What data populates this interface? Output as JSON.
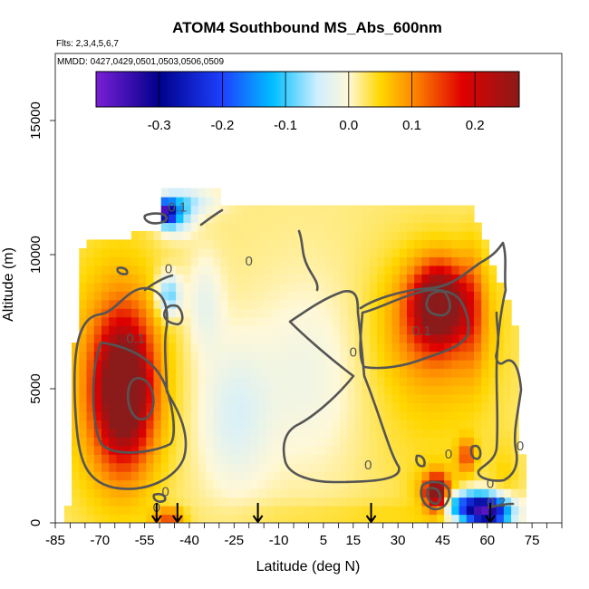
{
  "colors": {
    "background": "#ffffff",
    "frame": "#333333",
    "contour": "#555555",
    "arrow": "#000000",
    "colorbar_stops": [
      "#7a1fd6",
      "#00008b",
      "#1e40ff",
      "#00bfff",
      "#cfeeff",
      "#fff8d8",
      "#ffd700",
      "#ff8c00",
      "#e00000",
      "#8b1a1a"
    ]
  },
  "chart_data": {
    "type": "heatmap",
    "title": "ATOM4 Southbound MS_Abs_600nm",
    "subtitle_flights": "Flts: 2,3,4,5,6,7",
    "subtitle_dates": "MMDD: 0427,0429,0501,0503,0506,0509",
    "xlabel": "Latitude (deg N)",
    "ylabel": "Altitude (m)",
    "xlim": [
      -85,
      85
    ],
    "ylim": [
      0,
      17500
    ],
    "x_ticks": [
      -85,
      -70,
      -55,
      -40,
      -25,
      -10,
      5,
      15,
      30,
      45,
      60,
      75
    ],
    "x_tick_labels": [
      "-85",
      "-70",
      "-55",
      "-40",
      "-25",
      "-10",
      "5",
      "15",
      "30",
      "45",
      "60",
      "75"
    ],
    "y_ticks": [
      0,
      5000,
      10000,
      15000
    ],
    "y_tick_labels": [
      "0",
      "5000",
      "10000",
      "15000"
    ],
    "colorbar": {
      "range": [
        -0.4,
        0.27
      ],
      "ticks": [
        -0.3,
        -0.2,
        -0.1,
        0.0,
        0.1,
        0.2
      ],
      "tick_labels": [
        "-0.3",
        "-0.2",
        "-0.1",
        "0.0",
        "0.1",
        "0.2"
      ]
    },
    "contour_labels": [
      {
        "text": "0.1",
        "lat": -58,
        "alt": 6700
      },
      {
        "text": "0.1",
        "lat": -44,
        "alt": 11600
      },
      {
        "text": "0",
        "lat": -47,
        "alt": 9300
      },
      {
        "text": "0",
        "lat": -20,
        "alt": 9600
      },
      {
        "text": "0",
        "lat": 15,
        "alt": 6200
      },
      {
        "text": "0.1",
        "lat": 38,
        "alt": 7000
      },
      {
        "text": "0",
        "lat": 47,
        "alt": 2400
      },
      {
        "text": "0",
        "lat": 61,
        "alt": 1300
      },
      {
        "text": "0",
        "lat": 71,
        "alt": 2700
      },
      {
        "text": "0.2",
        "lat": 63,
        "alt": 600
      },
      {
        "text": "0",
        "lat": 20,
        "alt": 2000
      },
      {
        "text": "0",
        "lat": -48,
        "alt": 1000
      },
      {
        "text": "0",
        "lat": -51,
        "alt": 400
      }
    ],
    "profile_arrows_lat": [
      -51,
      -44,
      -17,
      21,
      61
    ],
    "blobs": [
      {
        "lat": -62,
        "alt": 5000,
        "w": 8,
        "h": 2300,
        "v": 0.27
      },
      {
        "lat": -62,
        "alt": 5000,
        "w": 12,
        "h": 3200,
        "v": 0.12
      },
      {
        "lat": -65,
        "alt": 5300,
        "w": 16,
        "h": 4300,
        "v": 0.07
      },
      {
        "lat": -65,
        "alt": 5800,
        "w": 20,
        "h": 6500,
        "v": 0.04
      },
      {
        "lat": -47,
        "alt": 8500,
        "w": 4,
        "h": 800,
        "v": -0.12
      },
      {
        "lat": -45,
        "alt": 11500,
        "w": 6,
        "h": 700,
        "v": -0.12
      },
      {
        "lat": -48,
        "alt": 11600,
        "w": 3,
        "h": 400,
        "v": -0.3
      },
      {
        "lat": -40,
        "alt": 12000,
        "w": 10,
        "h": 500,
        "v": -0.05
      },
      {
        "lat": -35,
        "alt": 8200,
        "w": 6,
        "h": 1800,
        "v": -0.03
      },
      {
        "lat": -25,
        "alt": 4000,
        "w": 12,
        "h": 2800,
        "v": -0.04
      },
      {
        "lat": 0,
        "alt": 5500,
        "w": 18,
        "h": 3500,
        "v": -0.02
      },
      {
        "lat": 44,
        "alt": 8200,
        "w": 8,
        "h": 1300,
        "v": 0.28
      },
      {
        "lat": 43,
        "alt": 7700,
        "w": 14,
        "h": 2000,
        "v": 0.12
      },
      {
        "lat": 42,
        "alt": 7200,
        "w": 22,
        "h": 3200,
        "v": 0.06
      },
      {
        "lat": 55,
        "alt": 8000,
        "w": 4,
        "h": 2300,
        "v": 0.08
      },
      {
        "lat": 42,
        "alt": 4200,
        "w": 24,
        "h": 5200,
        "v": 0.04
      },
      {
        "lat": 53,
        "alt": 2500,
        "w": 3,
        "h": 600,
        "v": 0.14
      },
      {
        "lat": 43,
        "alt": 1100,
        "w": 3.5,
        "h": 600,
        "v": 0.3
      },
      {
        "lat": 43,
        "alt": 1100,
        "w": 7,
        "h": 900,
        "v": 0.1
      },
      {
        "lat": 60,
        "alt": 400,
        "w": 8,
        "h": 600,
        "v": -0.35
      },
      {
        "lat": 52,
        "alt": 700,
        "w": 10,
        "h": 500,
        "v": -0.16
      },
      {
        "lat": -47,
        "alt": 200,
        "w": 5,
        "h": 350,
        "v": 0.14
      },
      {
        "lat": 25,
        "alt": 300,
        "w": 25,
        "h": 500,
        "v": 0.04
      },
      {
        "lat": -10,
        "alt": 300,
        "w": 25,
        "h": 500,
        "v": 0.035
      },
      {
        "lat": 66,
        "alt": 1500,
        "w": 5,
        "h": 1500,
        "v": 0.05
      }
    ]
  }
}
